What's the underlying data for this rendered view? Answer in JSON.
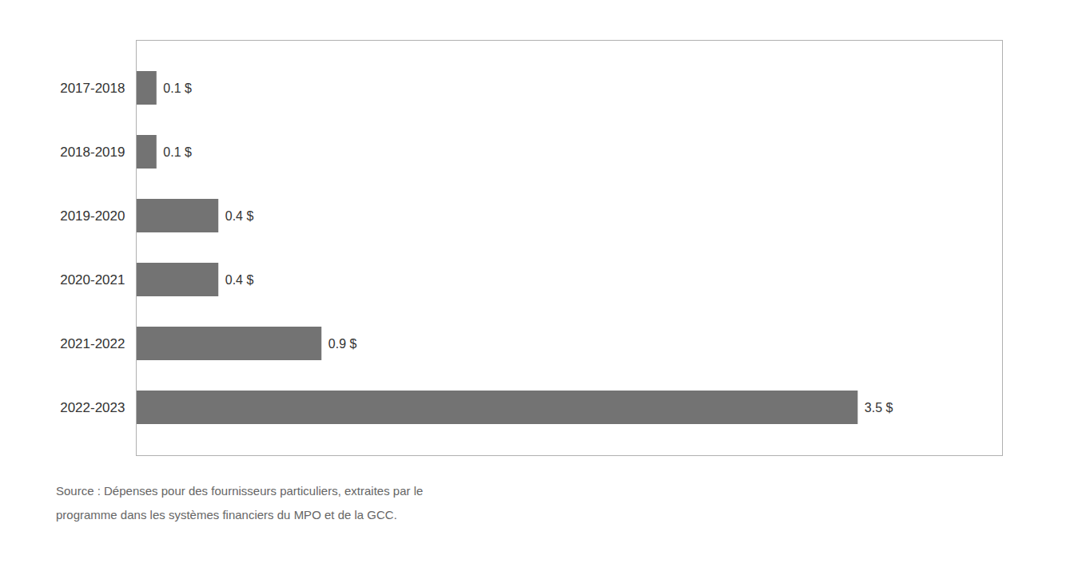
{
  "chart_data": {
    "type": "bar",
    "orientation": "horizontal",
    "categories": [
      "2017-2018",
      "2018-2019",
      "2019-2020",
      "2020-2021",
      "2021-2022",
      "2022-2023"
    ],
    "values": [
      0.1,
      0.1,
      0.4,
      0.4,
      0.9,
      3.5
    ],
    "value_labels": [
      "0.1 $",
      "0.1 $",
      "0.4 $",
      "0.4 $",
      "0.9 $",
      "3.5 $"
    ],
    "data_labels": true,
    "color": "#737373",
    "xlim": [
      0,
      4.2
    ],
    "xticks": [],
    "tick_labels": "y",
    "annotations": [
      "Source : Dépenses pour des fournisseurs particuliers, extraites par le\nprogramme dans les systèmes financiers du MPO et de la GCC."
    ]
  }
}
